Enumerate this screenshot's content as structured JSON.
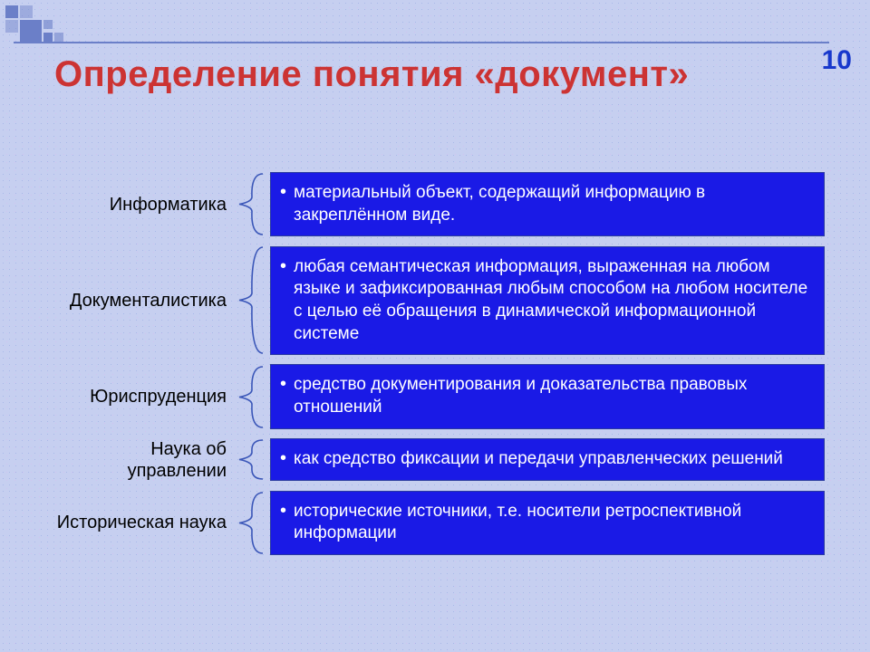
{
  "slide": {
    "page_number": "10",
    "title": "Определение понятия «документ»",
    "title_color": "#cc3333",
    "title_fontsize": 40,
    "page_num_color": "#1838cc",
    "background_mottle_color": "#c6cff0",
    "def_box_bg": "#1a1ae6",
    "def_box_border": "#2a3aa0",
    "def_text_color": "#ffffff",
    "label_color": "#000000",
    "connector_stroke": "#3a56b8",
    "deco_square_color": "#6b7fc8",
    "rows": [
      {
        "label": "Информатика",
        "definition": "материальный объект, содержащий информацию в закреплённом виде."
      },
      {
        "label": "Документалистика",
        "definition": "любая семантическая информация, выраженная на любом языке и зафиксированная любым способом на любом носителе с целью её обращения в динамической информационной системе"
      },
      {
        "label": "Юриспруденция",
        "definition": "средство документирования и доказательства правовых отношений"
      },
      {
        "label": "Наука об управлении",
        "definition": "как средство фиксации и передачи управленческих решений"
      },
      {
        "label": "Историческая наука",
        "definition": "исторические источники, т.е. носители ретроспективной информации"
      }
    ]
  }
}
